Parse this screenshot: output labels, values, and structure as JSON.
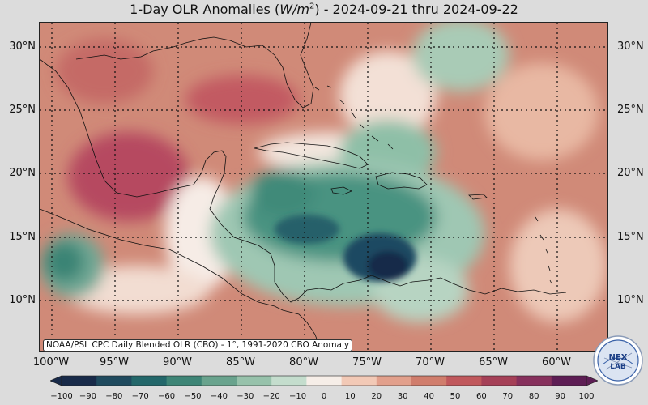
{
  "title": {
    "prefix": "1-Day OLR Anomalies (",
    "unit_base": "W/m",
    "unit_exp": "2",
    "suffix": ") - 2024-09-21 thru 2024-09-22"
  },
  "lat_labels": [
    "30°N",
    "25°N",
    "20°N",
    "15°N",
    "10°N"
  ],
  "lon_labels": [
    "100°W",
    "95°W",
    "90°W",
    "85°W",
    "80°W",
    "75°W",
    "70°W",
    "65°W",
    "60°W"
  ],
  "attribution": "NOAA/PSL CPC Daily Blended OLR (CBO) - 1°, 1991-2020 CBO Anomaly",
  "logo": {
    "name": "nex-lab-logo",
    "text": "NEX LAB"
  },
  "colorbar": {
    "ticks": [
      "−100",
      "−90",
      "−80",
      "−70",
      "−60",
      "−50",
      "−40",
      "−30",
      "−20",
      "−10",
      "0",
      "10",
      "20",
      "30",
      "40",
      "50",
      "60",
      "70",
      "80",
      "90",
      "100"
    ],
    "colors": [
      "#182a49",
      "#1f4a5e",
      "#23676a",
      "#3e8576",
      "#69a38d",
      "#97c2ab",
      "#c4ddcd",
      "#f6eee8",
      "#f2c9b6",
      "#e2a08c",
      "#d07d6c",
      "#c0585c",
      "#a54057",
      "#86305c",
      "#5d1d54"
    ]
  },
  "colors": {
    "warm_background": "#d08a78",
    "strong_warm": "#c25a62",
    "neutral": "#f5ebe5",
    "weak_cool": "#a9cbb6",
    "mid_cool": "#4a9381",
    "strong_cool": "#1f4a62",
    "land_line": "#111111",
    "grid_line": "#111111"
  }
}
